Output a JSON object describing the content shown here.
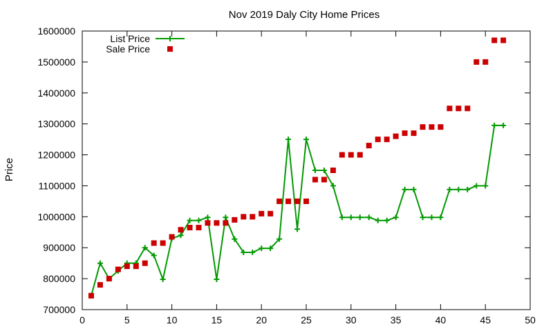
{
  "chart_data": {
    "type": "scatter",
    "title": "Nov 2019 Daly City Home Prices",
    "xlabel": "",
    "ylabel": "Price",
    "xlim": [
      0,
      50
    ],
    "ylim": [
      700000,
      1600000
    ],
    "x_ticks": [
      0,
      5,
      10,
      15,
      20,
      25,
      30,
      35,
      40,
      45,
      50
    ],
    "y_ticks": [
      700000,
      800000,
      900000,
      1000000,
      1100000,
      1200000,
      1300000,
      1400000,
      1500000,
      1600000
    ],
    "grid": false,
    "legend_position": "top-left",
    "series": [
      {
        "name": "List Price",
        "style": "line-with-plus-markers",
        "color": "#009900",
        "x": [
          1,
          2,
          3,
          4,
          5,
          6,
          7,
          8,
          9,
          10,
          11,
          12,
          13,
          14,
          15,
          16,
          17,
          18,
          19,
          20,
          21,
          22,
          23,
          24,
          25,
          26,
          27,
          28,
          29,
          30,
          31,
          32,
          33,
          34,
          35,
          36,
          37,
          38,
          39,
          40,
          41,
          42,
          43,
          44,
          45,
          46,
          47
        ],
        "y": [
          745000,
          850000,
          800000,
          825000,
          850000,
          850000,
          900000,
          875000,
          798000,
          930000,
          940000,
          988000,
          988000,
          998000,
          798000,
          998000,
          928000,
          885000,
          885000,
          898000,
          898000,
          928000,
          1250000,
          960000,
          1250000,
          1150000,
          1150000,
          1100000,
          998000,
          998000,
          998000,
          998000,
          988000,
          988000,
          998000,
          1088000,
          1088000,
          998000,
          998000,
          998000,
          1088000,
          1088000,
          1088000,
          1100000,
          1100000,
          1295000,
          1295000
        ]
      },
      {
        "name": "Sale Price",
        "style": "square-markers",
        "color": "#cc0000",
        "x": [
          1,
          2,
          3,
          4,
          5,
          6,
          7,
          8,
          9,
          10,
          11,
          12,
          13,
          14,
          15,
          16,
          17,
          18,
          19,
          20,
          21,
          22,
          23,
          24,
          25,
          26,
          27,
          28,
          29,
          30,
          31,
          32,
          33,
          34,
          35,
          36,
          37,
          38,
          39,
          40,
          41,
          42,
          43,
          44,
          45,
          46,
          47
        ],
        "y": [
          745000,
          780000,
          800000,
          830000,
          840000,
          840000,
          850000,
          915000,
          915000,
          935000,
          958000,
          965000,
          965000,
          980000,
          980000,
          980000,
          990000,
          1000000,
          1000000,
          1010000,
          1010000,
          1050000,
          1050000,
          1050000,
          1050000,
          1120000,
          1120000,
          1150000,
          1200000,
          1200000,
          1200000,
          1230000,
          1250000,
          1250000,
          1260000,
          1270000,
          1270000,
          1290000,
          1290000,
          1290000,
          1350000,
          1350000,
          1350000,
          1500000,
          1500000,
          1570000,
          1570000
        ]
      }
    ]
  }
}
